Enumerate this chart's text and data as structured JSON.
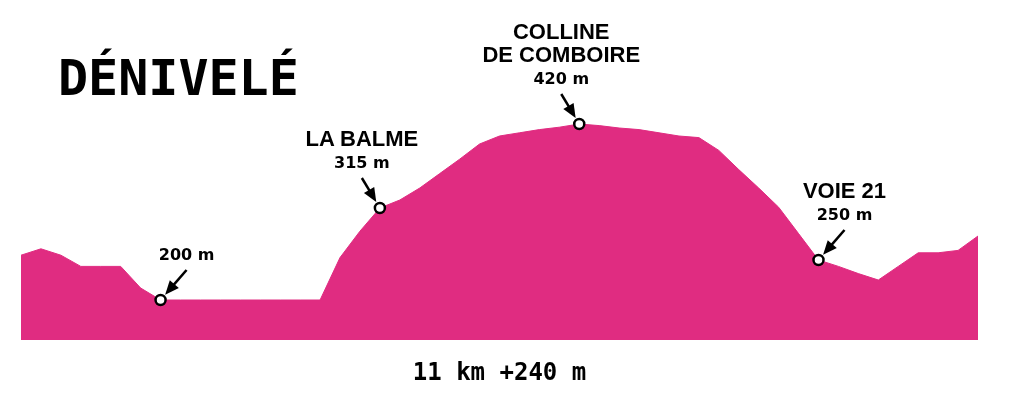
{
  "chart_data": {
    "type": "area",
    "title": "DÉNIVELÉ",
    "xlabel": "11 km +240 m",
    "color": "#e02c81",
    "tick_labels": false,
    "categories": [
      null,
      null,
      null,
      null,
      null,
      null,
      null,
      null,
      null,
      null,
      null,
      null,
      null,
      null,
      null,
      null,
      null,
      null,
      null,
      null,
      null,
      null,
      null,
      null,
      null,
      null,
      null,
      null,
      null,
      null,
      null,
      null,
      null,
      null,
      null,
      null,
      null,
      null,
      null,
      null,
      null,
      null,
      null,
      null,
      null,
      null,
      null,
      null,
      null
    ],
    "values": [
      256,
      264,
      256,
      242,
      242,
      242,
      215,
      200,
      200,
      200,
      200,
      200,
      200,
      200,
      200,
      200,
      253,
      286,
      315,
      325,
      340,
      358,
      376,
      395,
      405,
      409,
      413,
      416,
      420,
      418,
      415,
      413,
      409,
      405,
      403,
      387,
      363,
      340,
      316,
      283,
      250,
      242,
      233,
      225,
      242,
      259,
      259,
      262,
      280
    ],
    "value_labels": [
      null,
      null,
      null,
      null,
      null,
      null,
      null,
      "200 m",
      null,
      null,
      null,
      null,
      null,
      null,
      null,
      null,
      null,
      null,
      "315 m",
      null,
      null,
      null,
      null,
      null,
      null,
      null,
      null,
      null,
      "420 m",
      null,
      null,
      null,
      null,
      null,
      null,
      null,
      null,
      null,
      null,
      null,
      "250 m",
      null,
      null,
      null,
      null,
      null,
      null,
      null,
      null
    ],
    "annotations": [
      "LA BALME",
      "COLLINE\nDE COMBOIRE",
      "VOIE 21"
    ]
  }
}
